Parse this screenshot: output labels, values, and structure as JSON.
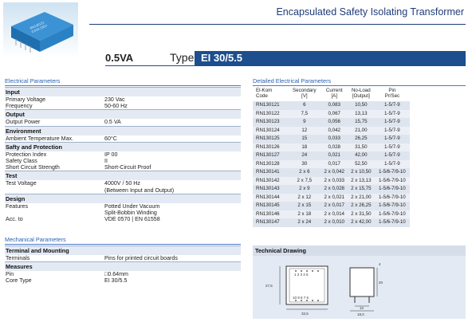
{
  "header": {
    "title": "Encapsulated Safety Isolating Transformer",
    "power": "0.5VA",
    "type_label": "Type",
    "type_value": "EI 30/5.5"
  },
  "electrical": {
    "section_title": "Electrical Parameters",
    "groups": [
      {
        "title": "Input",
        "rows": [
          {
            "k": "Primary Voltage",
            "v": "230 Vac"
          },
          {
            "k": "Frequency",
            "v": "50-60 Hz"
          }
        ]
      },
      {
        "title": "Output",
        "rows": [
          {
            "k": "Output Power",
            "v": "0.5 VA"
          }
        ]
      },
      {
        "title": "Environment",
        "rows": [
          {
            "k": "Ambient Temperature Max.",
            "v": "60°C"
          }
        ]
      },
      {
        "title": "Safty and Protection",
        "rows": [
          {
            "k": "Protection Index",
            "v": "IP 00"
          },
          {
            "k": "Safety Class",
            "v": "II"
          },
          {
            "k": "Short Circuit Strength",
            "v": "Short-Circuit Proof"
          }
        ]
      },
      {
        "title": "Test",
        "rows": [
          {
            "k": "Test Voltage",
            "v": "4000V / 50 Hz"
          },
          {
            "k": "",
            "v": "(Between Input and Output)"
          }
        ]
      },
      {
        "title": "Design",
        "rows": [
          {
            "k": "Features",
            "v": "Potted Under Vacuum"
          },
          {
            "k": "",
            "v": "Split-Bobbin Winding"
          },
          {
            "k": "Acc. to",
            "v": "VDE 0570 | EN 61558"
          }
        ]
      }
    ]
  },
  "mechanical": {
    "section_title": "Mechanical Parameters",
    "groups": [
      {
        "title": "Terminal and Mounting",
        "rows": [
          {
            "k": "Terminals",
            "v": "Pins for printed circuit boards"
          }
        ]
      },
      {
        "title": "Measures",
        "rows": [
          {
            "k": "Pin",
            "v": "□0.64mm"
          },
          {
            "k": "Core Type",
            "v": "EI 30/5.5"
          }
        ]
      }
    ]
  },
  "detailed": {
    "title": "Detailed Electrical Parameters",
    "headers": [
      [
        "El-Kom",
        "Code"
      ],
      [
        "Secondary",
        "[V]"
      ],
      [
        "Current",
        "[A]"
      ],
      [
        "No-Load",
        "[Output]"
      ],
      [
        "Pin",
        "Pr/Sec"
      ]
    ],
    "rows": [
      [
        "RN130121",
        "6",
        "0,083",
        "10,50",
        "1-5/7-9"
      ],
      [
        "RN130122",
        "7,5",
        "0,067",
        "13,13",
        "1-5/7-9"
      ],
      [
        "RN130123",
        "9",
        "0,056",
        "15,75",
        "1-5/7-9"
      ],
      [
        "RN130124",
        "12",
        "0,042",
        "21,00",
        "1-5/7-9"
      ],
      [
        "RN130125",
        "15",
        "0,033",
        "26,25",
        "1-5/7-9"
      ],
      [
        "RN130126",
        "18",
        "0,028",
        "31,50",
        "1-5/7-9"
      ],
      [
        "RN130127",
        "24",
        "0,021",
        "42,00",
        "1-5/7-9"
      ],
      [
        "RN130128",
        "30",
        "0,017",
        "52,50",
        "1-5/7-9"
      ],
      [
        "RN130141",
        "2 x 6",
        "2 x 0,042",
        "2 x 10,50",
        "1-5/6-7/9-10"
      ],
      [
        "RN130142",
        "2 x 7,5",
        "2 x 0,033",
        "2 x 13,13",
        "1-5/6-7/9-10"
      ],
      [
        "RN130143",
        "2 x 9",
        "2 x 0,028",
        "2 x 15,75",
        "1-5/6-7/9-10"
      ],
      [
        "RN130144",
        "2 x 12",
        "2 x 0,021",
        "2 x 21,00",
        "1-5/6-7/9-10"
      ],
      [
        "RN130145",
        "2 x 15",
        "2 x 0,017",
        "2 x 26,25",
        "1-5/6-7/9-10"
      ],
      [
        "RN130146",
        "2 x 18",
        "2 x 0,014",
        "2 x 31,50",
        "1-5/6-7/9-10"
      ],
      [
        "RN130147",
        "2 x 24",
        "2 x 0,010",
        "2 x 42,00",
        "1-5/6-7/9-10"
      ]
    ]
  },
  "technical": {
    "title": "Technical Drawing",
    "pins_top": "1 2 3 4 5",
    "pins_bottom": "10 9 8 7 6",
    "dim_height": "27,5",
    "dim_width": "32,5",
    "dim_pin_pitch": "12",
    "dim_depth": "18,0",
    "dim_side_height": "20",
    "dim_pin_len": "4",
    "product_label": "RN130121"
  },
  "colors": {
    "accent": "#1d4e8d",
    "band": "#e4eaf3",
    "link": "#2b61b4"
  }
}
